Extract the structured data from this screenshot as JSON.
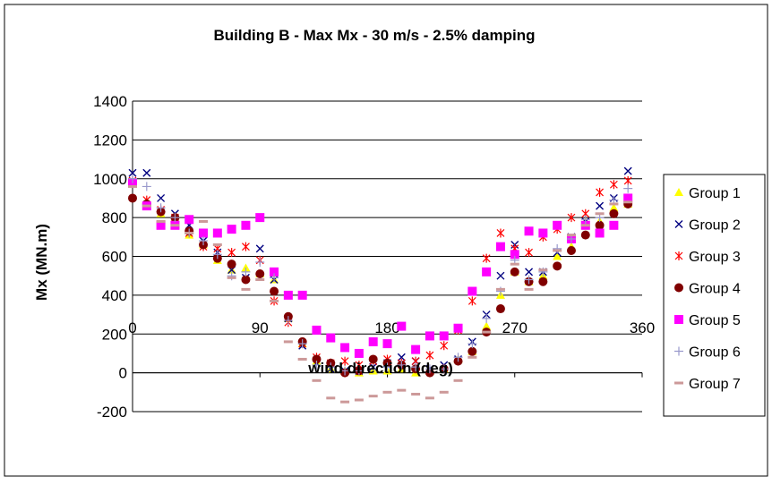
{
  "chart_data": {
    "type": "scatter",
    "title": "Building B - Max Mx - 30 m/s - 2.5% damping",
    "xlabel": "wind direction (deg)",
    "ylabel": "Mx (MN.m)",
    "xlim": [
      0,
      360
    ],
    "ylim": [
      -200,
      1400
    ],
    "xticks": [
      0,
      90,
      180,
      270,
      360
    ],
    "yticks": [
      -200,
      0,
      200,
      400,
      600,
      800,
      1000,
      1200,
      1400
    ],
    "grid": "horizontal",
    "legend_position": "right",
    "series": [
      {
        "name": "Group 1",
        "marker": "triangle",
        "color": "#FFFF00",
        "x": [
          0,
          10,
          20,
          30,
          40,
          50,
          60,
          70,
          80,
          90,
          100,
          110,
          120,
          130,
          140,
          150,
          160,
          170,
          180,
          190,
          200,
          210,
          220,
          230,
          240,
          250,
          260,
          270,
          280,
          290,
          300,
          310,
          320,
          330,
          340,
          350
        ],
        "y": [
          980,
          880,
          820,
          790,
          710,
          660,
          580,
          530,
          540,
          510,
          480,
          280,
          150,
          60,
          20,
          10,
          0,
          10,
          10,
          20,
          0,
          10,
          20,
          70,
          110,
          240,
          400,
          520,
          470,
          500,
          600,
          650,
          780,
          780,
          850,
          870
        ]
      },
      {
        "name": "Group 2",
        "marker": "x",
        "color": "#000080",
        "x": [
          0,
          10,
          20,
          30,
          40,
          50,
          60,
          70,
          80,
          90,
          100,
          110,
          120,
          130,
          140,
          150,
          160,
          170,
          180,
          190,
          200,
          210,
          220,
          230,
          240,
          250,
          260,
          270,
          280,
          290,
          300,
          310,
          320,
          330,
          340,
          350
        ],
        "y": [
          1030,
          1030,
          900,
          820,
          760,
          680,
          620,
          530,
          490,
          640,
          480,
          280,
          140,
          50,
          20,
          10,
          10,
          30,
          50,
          80,
          60,
          20,
          40,
          70,
          160,
          300,
          500,
          660,
          520,
          520,
          620,
          700,
          780,
          860,
          900,
          1040
        ]
      },
      {
        "name": "Group 3",
        "marker": "star",
        "color": "#FF0000",
        "x": [
          0,
          10,
          20,
          30,
          40,
          50,
          60,
          70,
          80,
          90,
          100,
          110,
          120,
          130,
          140,
          150,
          160,
          170,
          180,
          190,
          200,
          210,
          220,
          230,
          240,
          250,
          260,
          270,
          280,
          290,
          300,
          310,
          320,
          330,
          340,
          350
        ],
        "y": [
          990,
          890,
          840,
          800,
          720,
          650,
          640,
          620,
          650,
          580,
          370,
          260,
          150,
          80,
          50,
          60,
          40,
          60,
          70,
          50,
          60,
          90,
          140,
          220,
          370,
          590,
          720,
          640,
          620,
          700,
          740,
          800,
          820,
          930,
          970,
          990
        ]
      },
      {
        "name": "Group 4",
        "marker": "circle",
        "color": "#800000",
        "x": [
          0,
          10,
          20,
          30,
          40,
          50,
          60,
          70,
          80,
          90,
          100,
          110,
          120,
          130,
          140,
          150,
          160,
          170,
          180,
          190,
          200,
          210,
          220,
          230,
          240,
          250,
          260,
          270,
          280,
          290,
          300,
          310,
          320,
          330,
          340,
          350
        ],
        "y": [
          900,
          870,
          830,
          800,
          730,
          660,
          590,
          560,
          480,
          510,
          420,
          290,
          160,
          70,
          50,
          0,
          10,
          70,
          50,
          40,
          20,
          0,
          20,
          60,
          110,
          210,
          330,
          520,
          470,
          470,
          550,
          630,
          710,
          760,
          820,
          870
        ]
      },
      {
        "name": "Group 5",
        "marker": "square",
        "color": "#FF00FF",
        "x": [
          0,
          10,
          20,
          30,
          40,
          50,
          60,
          70,
          80,
          90,
          100,
          110,
          120,
          130,
          140,
          150,
          160,
          170,
          180,
          190,
          200,
          210,
          220,
          230,
          240,
          250,
          260,
          270,
          280,
          290,
          300,
          310,
          320,
          330,
          340,
          350
        ],
        "y": [
          980,
          860,
          760,
          760,
          790,
          720,
          720,
          740,
          760,
          800,
          520,
          400,
          400,
          220,
          180,
          130,
          100,
          160,
          150,
          240,
          120,
          190,
          190,
          230,
          420,
          520,
          650,
          610,
          730,
          720,
          760,
          690,
          760,
          720,
          760,
          900
        ]
      },
      {
        "name": "Group 6",
        "marker": "plus",
        "color": "#9999CC",
        "x": [
          0,
          10,
          20,
          30,
          40,
          50,
          60,
          70,
          80,
          90,
          100,
          110,
          120,
          130,
          140,
          150,
          160,
          170,
          180,
          190,
          200,
          210,
          220,
          230,
          240,
          250,
          260,
          270,
          280,
          290,
          300,
          310,
          320,
          330,
          340,
          350
        ],
        "y": [
          1000,
          960,
          850,
          800,
          720,
          680,
          610,
          500,
          520,
          570,
          490,
          270,
          150,
          40,
          30,
          10,
          10,
          20,
          30,
          40,
          30,
          20,
          20,
          80,
          150,
          280,
          420,
          580,
          480,
          520,
          640,
          690,
          790,
          800,
          890,
          950
        ]
      },
      {
        "name": "Group 7",
        "marker": "dash",
        "color": "#CC9999",
        "x": [
          0,
          10,
          20,
          30,
          40,
          50,
          60,
          70,
          80,
          90,
          100,
          110,
          120,
          130,
          140,
          150,
          160,
          170,
          180,
          190,
          200,
          210,
          220,
          230,
          240,
          250,
          260,
          270,
          280,
          290,
          300,
          310,
          320,
          330,
          340,
          350
        ],
        "y": [
          960,
          860,
          780,
          760,
          720,
          780,
          660,
          490,
          430,
          480,
          370,
          160,
          70,
          -40,
          -130,
          -150,
          -140,
          -120,
          -100,
          -90,
          -110,
          -130,
          -100,
          -40,
          80,
          210,
          430,
          560,
          430,
          530,
          630,
          710,
          760,
          820,
          870,
          880
        ]
      }
    ]
  }
}
